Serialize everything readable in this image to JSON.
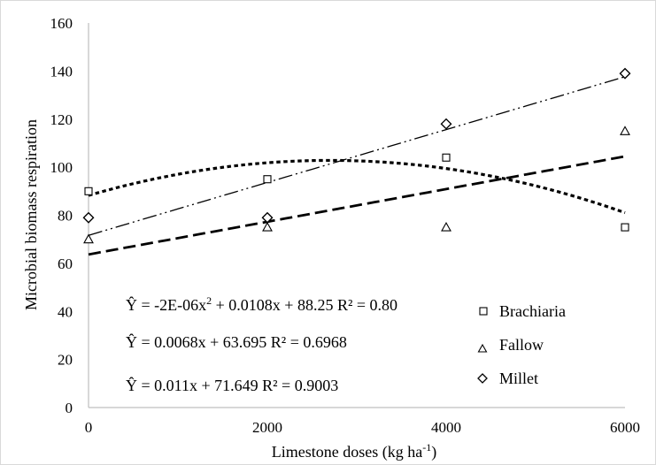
{
  "chart_data": {
    "type": "scatter",
    "title": "",
    "xlabel": "Limestone doses (kg ha",
    "xlabel_sup": "-1",
    "xlabel_end": ")",
    "ylabel": "Microbial biomass respiration",
    "xlim": [
      0,
      6000
    ],
    "ylim": [
      0,
      160
    ],
    "x_ticks": [
      0,
      2000,
      4000,
      6000
    ],
    "y_ticks": [
      0,
      20,
      40,
      60,
      80,
      100,
      120,
      140,
      160
    ],
    "grid": false,
    "legend_position": "bottom-right",
    "series": [
      {
        "name": "Brachiaria",
        "marker": "square",
        "x": [
          0,
          2000,
          4000,
          6000
        ],
        "y": [
          90,
          95,
          104,
          75
        ],
        "trendline": {
          "kind": "quadratic",
          "a": -2e-06,
          "b": 0.0108,
          "c": 88.25,
          "style": "dotted-dash"
        }
      },
      {
        "name": "Fallow",
        "marker": "triangle",
        "x": [
          0,
          2000,
          4000,
          6000
        ],
        "y": [
          70,
          75,
          75,
          115
        ],
        "trendline": {
          "kind": "linear",
          "slope": 0.0068,
          "intercept": 63.695,
          "style": "long-dash"
        }
      },
      {
        "name": "Millet",
        "marker": "diamond",
        "x": [
          0,
          2000,
          4000,
          6000
        ],
        "y": [
          79,
          79,
          118,
          139
        ],
        "trendline": {
          "kind": "linear",
          "slope": 0.011,
          "intercept": 71.649,
          "style": "dash-dot-dot"
        }
      }
    ],
    "equations": [
      {
        "pre": "Ŷ = -2E-06x",
        "sup": "2",
        "post": " + 0.0108x + 88.25 R² = 0.80"
      },
      {
        "pre": "Ŷ = 0.0068x + 63.695 R² = 0.6968",
        "sup": "",
        "post": ""
      },
      {
        "pre": "Ŷ = 0.011x + 71.649 R² = 0.9003",
        "sup": "",
        "post": ""
      }
    ],
    "colors": {
      "axis": "#bfbfbf",
      "marker": "#000000",
      "line": "#000000",
      "background": "#ffffff"
    }
  }
}
